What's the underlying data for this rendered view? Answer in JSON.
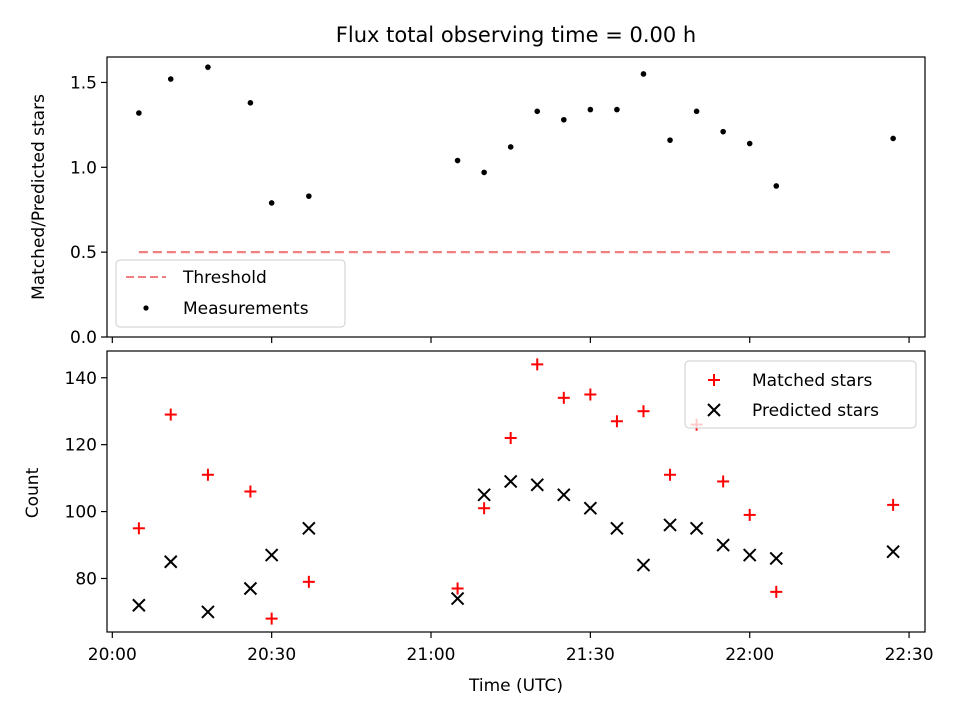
{
  "chart_data": [
    {
      "type": "scatter",
      "title": "Flux total observing time = 0.00 h",
      "xlabel": "",
      "ylabel": "Matched/Predicted stars",
      "xlim": [
        "19:59",
        "22:33"
      ],
      "ylim": [
        0,
        1.65
      ],
      "yticks": [
        0.0,
        0.5,
        1.0,
        1.5
      ],
      "ytick_labels": [
        "0.0",
        "0.5",
        "1.0",
        "1.5"
      ],
      "legend_position": "lower-left",
      "series": [
        {
          "name": "Threshold",
          "kind": "line",
          "style": "dashed",
          "color": "#f08080",
          "x": [
            "20:05",
            "22:27"
          ],
          "y": [
            0.5,
            0.5
          ]
        },
        {
          "name": "Measurements",
          "kind": "scatter",
          "marker": "dot",
          "color": "#000000",
          "x": [
            "20:05",
            "20:11",
            "20:18",
            "20:26",
            "20:30",
            "20:37",
            "21:05",
            "21:10",
            "21:15",
            "21:20",
            "21:25",
            "21:30",
            "21:35",
            "21:40",
            "21:45",
            "21:50",
            "21:55",
            "22:00",
            "22:05",
            "22:27"
          ],
          "y": [
            1.32,
            1.52,
            1.59,
            1.38,
            0.79,
            0.83,
            1.04,
            0.97,
            1.12,
            1.33,
            1.28,
            1.34,
            1.34,
            1.55,
            1.16,
            1.33,
            1.21,
            1.14,
            0.89,
            1.17
          ]
        }
      ]
    },
    {
      "type": "scatter",
      "title": "",
      "xlabel": "Time (UTC)",
      "ylabel": "Count",
      "xlim": [
        "19:59",
        "22:33"
      ],
      "xticks": [
        "20:00",
        "20:30",
        "21:00",
        "21:30",
        "22:00",
        "22:30"
      ],
      "ylim": [
        64,
        148
      ],
      "yticks": [
        80,
        100,
        120,
        140
      ],
      "legend_position": "top-right",
      "series": [
        {
          "name": "Matched stars",
          "kind": "scatter",
          "marker": "plus",
          "color": "#ff0000",
          "x": [
            "20:05",
            "20:11",
            "20:18",
            "20:26",
            "20:30",
            "20:37",
            "21:05",
            "21:10",
            "21:15",
            "21:20",
            "21:25",
            "21:30",
            "21:35",
            "21:40",
            "21:45",
            "21:50",
            "21:55",
            "22:00",
            "22:05",
            "22:27"
          ],
          "y": [
            95,
            129,
            111,
            106,
            68,
            79,
            77,
            101,
            122,
            144,
            134,
            135,
            127,
            130,
            111,
            126,
            109,
            99,
            76,
            102
          ]
        },
        {
          "name": "Predicted stars",
          "kind": "scatter",
          "marker": "x",
          "color": "#000000",
          "x": [
            "20:05",
            "20:11",
            "20:18",
            "20:26",
            "20:30",
            "20:37",
            "21:05",
            "21:10",
            "21:15",
            "21:20",
            "21:25",
            "21:30",
            "21:35",
            "21:40",
            "21:45",
            "21:50",
            "21:55",
            "22:00",
            "22:05",
            "22:27"
          ],
          "y": [
            72,
            85,
            70,
            77,
            87,
            95,
            74,
            105,
            109,
            108,
            105,
            101,
            95,
            84,
            96,
            95,
            90,
            87,
            86,
            88
          ]
        }
      ]
    }
  ]
}
